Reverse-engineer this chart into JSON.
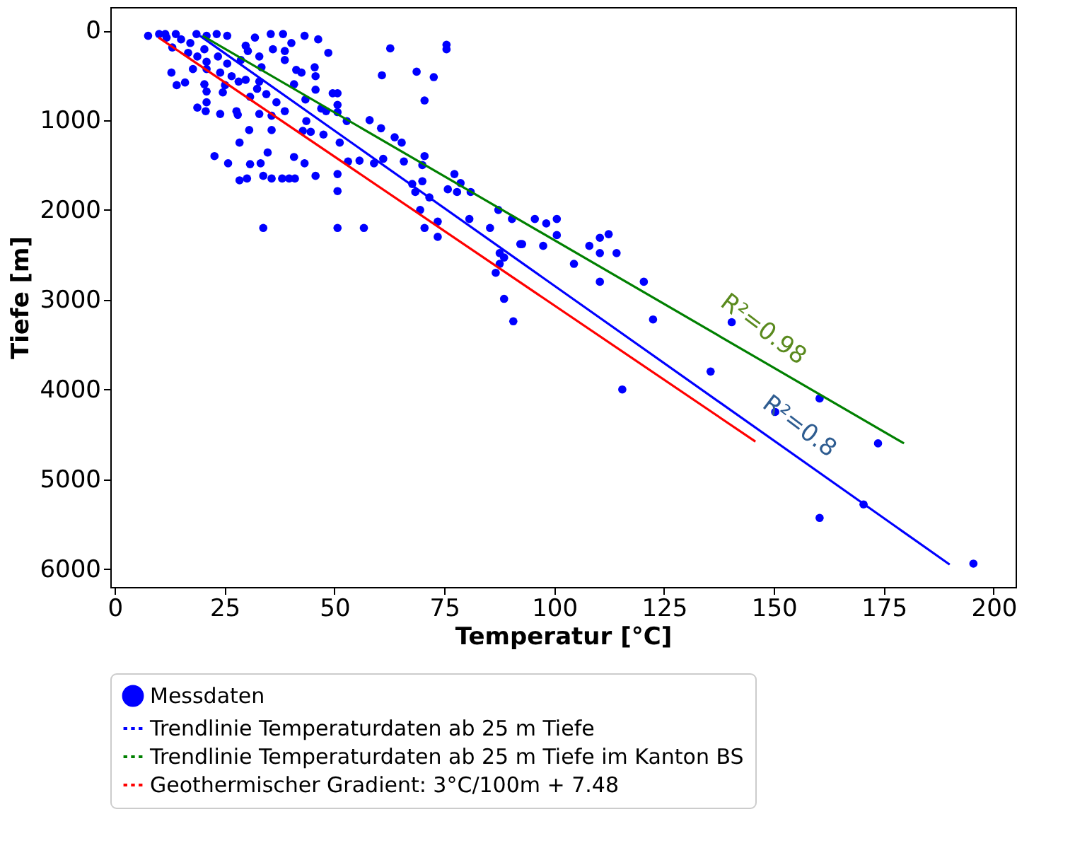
{
  "chart_data": {
    "type": "scatter",
    "xlabel": "Temperatur [°C]",
    "ylabel": "Tiefe [m]",
    "xlim": [
      -1,
      205
    ],
    "ylim": [
      6200,
      -260
    ],
    "xticks": [
      0,
      25,
      50,
      75,
      100,
      125,
      150,
      175,
      200
    ],
    "yticks": [
      0,
      1000,
      2000,
      3000,
      4000,
      5000,
      6000
    ],
    "grid": false,
    "legend": "bottom left",
    "series": [
      {
        "name": "Messdaten",
        "marker": "circle",
        "color": "#0000ff",
        "x": [
          7.6,
          10.1,
          11.5,
          13.9,
          11.8,
          15.1,
          17.2,
          18.6,
          20.9,
          23.2,
          25.6,
          31.9,
          35.5,
          38.3,
          43.2,
          46.3,
          40.2,
          48.6,
          62.7,
          75.5,
          75.5,
          13.1,
          16.7,
          20.4,
          23.5,
          29.8,
          30.3,
          32.9,
          38.7,
          36.0,
          18.8,
          20.9,
          25.6,
          28.7,
          33.4,
          38.7,
          17.8,
          12.9,
          20.9,
          24.0,
          26.6,
          29.8,
          32.9,
          41.3,
          45.5,
          42.5,
          45.7,
          60.8,
          68.7,
          72.6,
          14.1,
          16.0,
          20.4,
          25.1,
          28.2,
          40.8,
          45.7,
          49.6,
          50.7,
          20.9,
          24.6,
          32.4,
          34.5,
          30.8,
          43.4,
          50.7,
          47.0,
          70.5,
          20.9,
          36.8,
          18.8,
          20.7,
          24.0,
          27.7,
          28.0,
          32.9,
          35.7,
          38.7,
          48.1,
          50.7,
          52.8,
          58.0,
          60.6,
          63.7,
          65.3,
          43.6,
          30.6,
          35.7,
          42.8,
          44.6,
          47.5,
          51.2,
          28.4,
          34.8,
          22.7,
          40.8,
          53.1,
          55.7,
          59.0,
          61.1,
          65.8,
          70.5,
          70.0,
          25.8,
          30.8,
          33.2,
          43.2,
          50.7,
          33.8,
          45.7,
          28.4,
          30.1,
          35.7,
          38.1,
          39.7,
          41.0,
          50.7,
          67.7,
          70.0,
          68.4,
          71.6,
          77.3,
          78.7,
          75.8,
          77.9,
          81.0,
          87.3,
          90.4,
          69.5,
          73.5,
          80.7,
          85.4,
          33.8,
          50.7,
          56.7,
          70.5,
          73.5,
          92.3,
          95.6,
          98.2,
          100.6,
          100.6,
          92.7,
          97.5,
          108.0,
          110.4,
          112.4,
          110.4,
          114.2,
          104.5,
          110.4,
          120.4,
          122.5,
          115.5,
          87.6,
          88.6,
          87.6,
          86.7,
          88.6,
          90.7,
          140.4,
          135.6,
          150.3,
          160.4,
          173.7,
          170.4,
          160.4,
          195.4
        ],
        "values": [
          60,
          40,
          40,
          40,
          80,
          100,
          140,
          40,
          60,
          40,
          60,
          80,
          40,
          40,
          60,
          100,
          140,
          250,
          200,
          160,
          210,
          190,
          250,
          210,
          290,
          170,
          230,
          290,
          230,
          210,
          290,
          350,
          370,
          330,
          410,
          330,
          430,
          470,
          430,
          470,
          510,
          550,
          570,
          440,
          410,
          470,
          510,
          500,
          460,
          520,
          610,
          580,
          600,
          610,
          570,
          600,
          660,
          700,
          700,
          680,
          690,
          650,
          710,
          740,
          770,
          830,
          870,
          780,
          800,
          800,
          860,
          900,
          930,
          900,
          940,
          930,
          950,
          900,
          900,
          910,
          1010,
          1000,
          1090,
          1190,
          1250,
          1010,
          1110,
          1110,
          1120,
          1130,
          1160,
          1250,
          1250,
          1360,
          1400,
          1410,
          1460,
          1450,
          1480,
          1430,
          1460,
          1400,
          1500,
          1480,
          1490,
          1480,
          1480,
          1600,
          1620,
          1620,
          1670,
          1650,
          1650,
          1650,
          1650,
          1650,
          1790,
          1710,
          1680,
          1800,
          1860,
          1600,
          1700,
          1770,
          1800,
          1800,
          2000,
          2100,
          2000,
          2130,
          2100,
          2200,
          2200,
          2200,
          2200,
          2200,
          2300,
          2380,
          2100,
          2150,
          2100,
          2280,
          2380,
          2400,
          2400,
          2310,
          2270,
          2480,
          2480,
          2600,
          2800,
          2800,
          3220,
          4000,
          2480,
          2530,
          2600,
          2700,
          2990,
          3240,
          3250,
          3800,
          4250,
          4100,
          4600,
          5280,
          5430,
          5940
        ]
      },
      {
        "name": "Trendlinie Temperaturdaten ab 25 m Tiefe",
        "type": "line",
        "color": "#0000ff",
        "x": [
          19.4,
          190
        ],
        "values": [
          60,
          5950
        ]
      },
      {
        "name": "Trendlinie Temperaturdaten ab 25 m Tiefe im Kanton BS",
        "type": "line",
        "color": "#008000",
        "x": [
          20,
          179.6
        ],
        "values": [
          60,
          4600
        ]
      },
      {
        "name": "Geothermischer Gradient: 3°C/100m + 7.48",
        "type": "line",
        "color": "#ff0000",
        "x": [
          10,
          145.8
        ],
        "values": [
          80,
          4580
        ]
      }
    ],
    "annotations": [
      "R²=0.98",
      "R²=0.8"
    ]
  }
}
